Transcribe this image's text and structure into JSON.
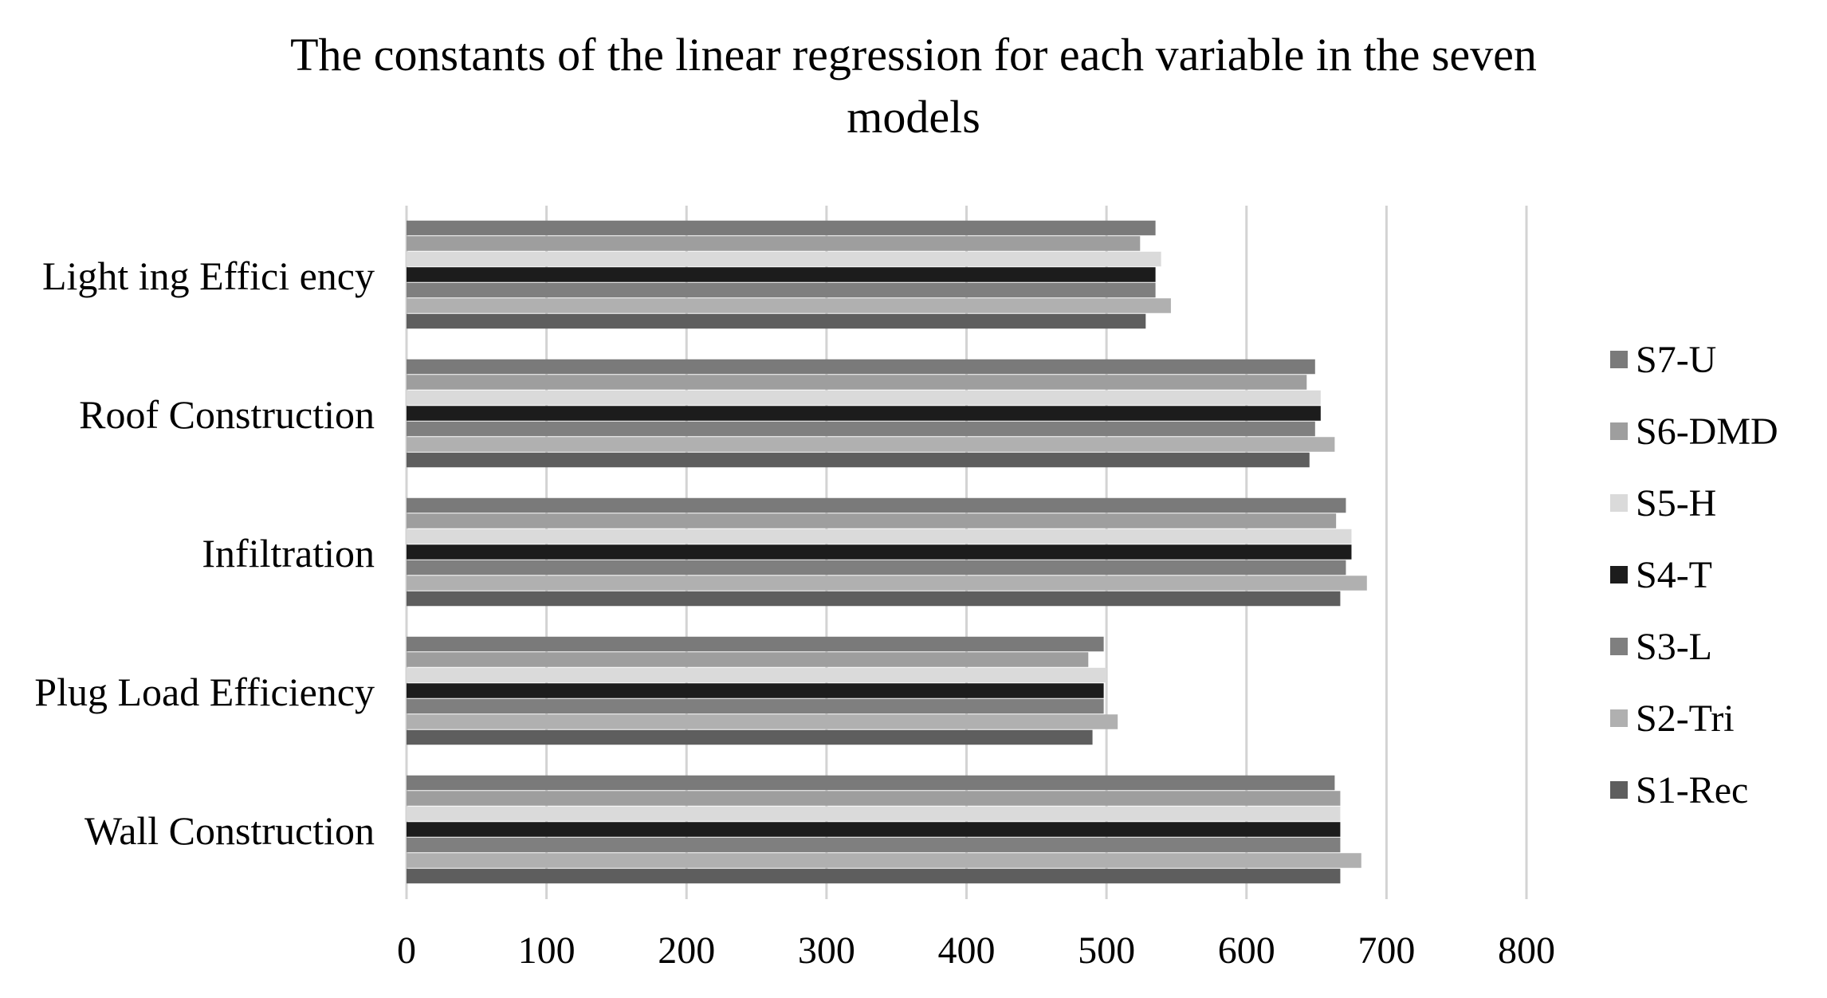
{
  "chart_data": {
    "type": "bar",
    "orientation": "horizontal",
    "title_lines": [
      "The constants of the linear regression for each variable in the seven",
      "models"
    ],
    "categories": [
      "Lighting Efficiency",
      "Roof Construction",
      "Infiltration",
      "Plug Load Efficiency",
      "Wall Construction"
    ],
    "category_label_text": [
      "Light ing Effici ency",
      "Roof Construction",
      "Infiltration",
      "Plug Load Efficiency",
      "Wall Construction"
    ],
    "series": [
      {
        "name": "S7-U",
        "color": "#7a7a7a",
        "values": [
          535,
          649,
          671,
          498,
          663
        ]
      },
      {
        "name": "S6-DMD",
        "color": "#9e9e9e",
        "values": [
          524,
          643,
          664,
          487,
          667
        ]
      },
      {
        "name": "S5-H",
        "color": "#dadada",
        "values": [
          539,
          653,
          675,
          500,
          667
        ]
      },
      {
        "name": "S4-T",
        "color": "#1c1c1c",
        "values": [
          535,
          653,
          675,
          498,
          667
        ]
      },
      {
        "name": "S3-L",
        "color": "#7f7f7f",
        "values": [
          535,
          649,
          671,
          498,
          667
        ]
      },
      {
        "name": "S2-Tri",
        "color": "#b0b0b0",
        "values": [
          546,
          663,
          686,
          508,
          682
        ]
      },
      {
        "name": "S1-Rec",
        "color": "#5e5e5e",
        "values": [
          528,
          645,
          667,
          490,
          667
        ]
      }
    ],
    "xlabel": "",
    "ylabel": "",
    "xlim": [
      0,
      800
    ],
    "xticks": [
      0,
      100,
      200,
      300,
      400,
      500,
      600,
      700,
      800
    ],
    "grid": "vertical",
    "legend_position": "right",
    "legend_order": [
      "S7-U",
      "S6-DMD",
      "S5-H",
      "S4-T",
      "S3-L",
      "S2-Tri",
      "S1-Rec"
    ]
  }
}
